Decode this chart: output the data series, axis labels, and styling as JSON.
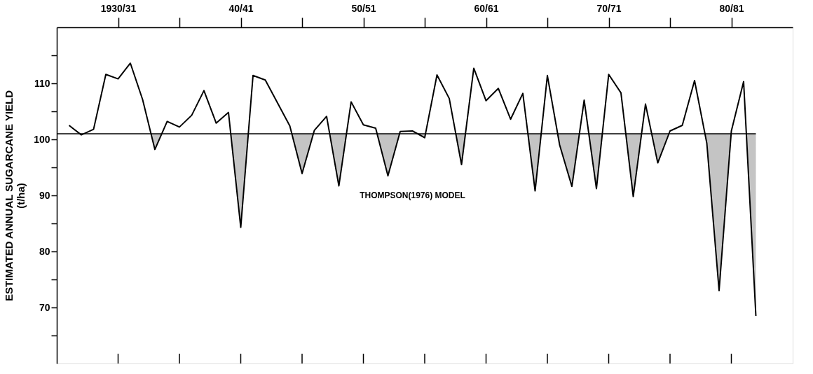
{
  "chart_data": {
    "type": "line",
    "ylabel": "ESTIMATED ANNUAL SUGARCANE YIELD\n(t/ha)",
    "categories": [
      null,
      null,
      null,
      null,
      "1930/31",
      null,
      null,
      null,
      null,
      null,
      null,
      null,
      null,
      null,
      "40/41",
      null,
      null,
      null,
      null,
      null,
      null,
      null,
      null,
      null,
      "50/51",
      null,
      null,
      null,
      null,
      null,
      null,
      null,
      null,
      null,
      "60/61",
      null,
      null,
      null,
      null,
      null,
      null,
      null,
      null,
      null,
      "70/71",
      null,
      null,
      null,
      null,
      null,
      null,
      null,
      null,
      null,
      "80/81",
      null,
      null
    ],
    "series": [
      {
        "color": "#000000",
        "values": [
          102.5,
          100.8,
          101.8,
          111.6,
          110.8,
          113.6,
          107.1,
          98.2,
          103.2,
          102.2,
          104.3,
          108.7,
          102.9,
          104.8,
          84.3,
          111.4,
          110.6,
          106.5,
          102.4,
          93.9,
          101.6,
          104.1,
          91.7,
          106.7,
          102.6,
          102.0,
          93.5,
          101.4,
          101.5,
          100.3,
          111.5,
          107.3,
          95.5,
          112.7,
          106.9,
          109.1,
          103.6,
          108.2,
          90.8,
          111.4,
          99.0,
          91.6,
          107.0,
          91.2,
          111.6,
          108.3,
          89.8,
          106.3,
          95.8,
          101.5,
          102.5,
          110.5,
          99.3,
          73.0,
          101.5,
          110.3,
          68.5
        ]
      }
    ],
    "ref_lines": [
      {
        "axis": "y",
        "value": 101,
        "label": "THOMPSON(1976) MODEL",
        "color": "#000000",
        "line_style": "solid"
      }
    ],
    "ylim": [
      60,
      120
    ],
    "yticks": [
      {
        "value": 65,
        "label": null
      },
      70,
      {
        "value": 75,
        "label": null
      },
      80,
      {
        "value": 85,
        "label": null
      },
      90,
      {
        "value": 95,
        "label": null
      },
      100,
      {
        "value": 105,
        "label": null
      },
      110,
      {
        "value": 115,
        "label": null
      }
    ],
    "marker": "none",
    "line_style": "solid"
  }
}
